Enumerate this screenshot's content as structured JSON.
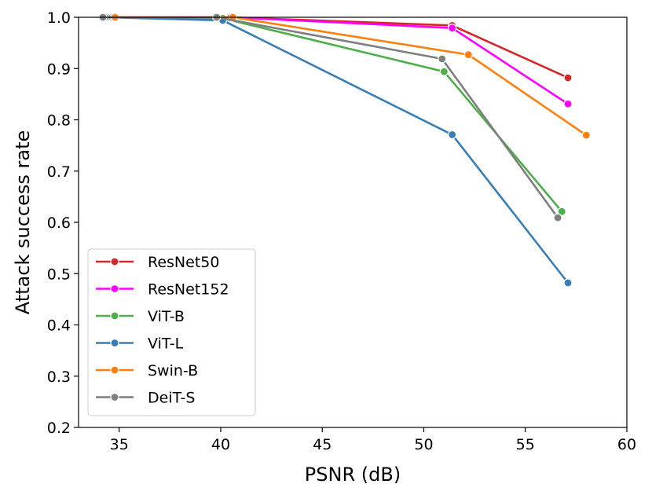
{
  "chart_data": {
    "type": "line",
    "xlabel": "PSNR (dB)",
    "ylabel": "Attack success rate",
    "xlim": [
      33,
      60
    ],
    "ylim": [
      0.2,
      1.0
    ],
    "xticks": [
      "35",
      "40",
      "45",
      "50",
      "55",
      "60"
    ],
    "yticks": [
      "0.2",
      "0.3",
      "0.4",
      "0.5",
      "0.6",
      "0.7",
      "0.8",
      "0.9",
      "1.0"
    ],
    "grid": false,
    "legend_position": "lower-left",
    "series": [
      {
        "name": "ResNet50",
        "color": "#d62728",
        "points": [
          [
            34.5,
            1.0
          ],
          [
            40.5,
            1.0
          ],
          [
            51.4,
            0.984
          ],
          [
            57.1,
            0.882
          ]
        ]
      },
      {
        "name": "ResNet152",
        "color": "#ff00ff",
        "points": [
          [
            34.5,
            1.0
          ],
          [
            40.5,
            1.0
          ],
          [
            51.4,
            0.979
          ],
          [
            57.1,
            0.831
          ]
        ]
      },
      {
        "name": "ViT-B",
        "color": "#4daf4a",
        "points": [
          [
            34.4,
            1.0
          ],
          [
            40.1,
            0.998
          ],
          [
            51.0,
            0.894
          ],
          [
            56.8,
            0.621
          ]
        ]
      },
      {
        "name": "ViT-L",
        "color": "#377eb8",
        "points": [
          [
            34.3,
            1.0
          ],
          [
            40.1,
            0.994
          ],
          [
            51.4,
            0.771
          ],
          [
            57.1,
            0.482
          ]
        ]
      },
      {
        "name": "Swin-B",
        "color": "#ff7f0e",
        "points": [
          [
            34.8,
            1.0
          ],
          [
            40.6,
            1.0
          ],
          [
            52.2,
            0.927
          ],
          [
            58.0,
            0.77
          ]
        ]
      },
      {
        "name": "DeiT-S",
        "color": "#7f7f7f",
        "points": [
          [
            34.2,
            1.0
          ],
          [
            39.8,
            1.0
          ],
          [
            50.9,
            0.919
          ],
          [
            56.6,
            0.609
          ]
        ]
      }
    ]
  }
}
